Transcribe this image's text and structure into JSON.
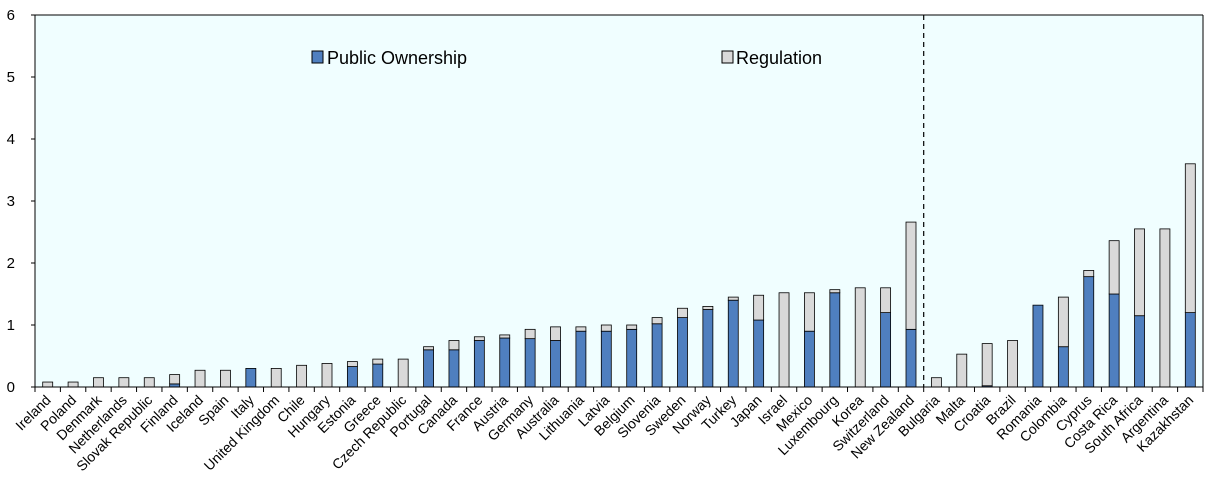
{
  "chart_data": {
    "type": "bar",
    "stacked": true,
    "ylim": [
      0,
      6
    ],
    "yticks": [
      0,
      1,
      2,
      3,
      4,
      5,
      6
    ],
    "grid": false,
    "legend_placement": "top",
    "divider_after": "New Zealand",
    "categories": [
      "Ireland",
      "Poland",
      "Denmark",
      "Netherlands",
      "Slovak Republic",
      "Finland",
      "Iceland",
      "Spain",
      "Italy",
      "United Kingdom",
      "Chile",
      "Hungary",
      "Estonia",
      "Greece",
      "Czech Republic",
      "Portugal",
      "Canada",
      "France",
      "Austria",
      "Germany",
      "Australia",
      "Lithuania",
      "Latvia",
      "Belgium",
      "Slovenia",
      "Sweden",
      "Norway",
      "Turkey",
      "Japan",
      "Israel",
      "Mexico",
      "Luxembourg",
      "Korea",
      "Switzerland",
      "New Zealand",
      "Bulgaria",
      "Malta",
      "Croatia",
      "Brazil",
      "Romania",
      "Colombia",
      "Cyprus",
      "Costa Rica",
      "South Africa",
      "Argentina",
      "Kazakhstan"
    ],
    "series": [
      {
        "name": "Public Ownership",
        "color": "#4f7fbf",
        "values": [
          0,
          0,
          0,
          0,
          0,
          0.05,
          0,
          0,
          0.3,
          0,
          0,
          0,
          0.33,
          0.37,
          0,
          0.6,
          0.6,
          0.75,
          0.79,
          0.78,
          0.75,
          0.9,
          0.9,
          0.93,
          1.02,
          1.12,
          1.25,
          1.4,
          1.08,
          0,
          0.9,
          1.52,
          0,
          1.2,
          0.93,
          0,
          0,
          0.02,
          0,
          1.32,
          0.65,
          1.78,
          1.5,
          1.15,
          0,
          1.2
        ]
      },
      {
        "name": "Regulation",
        "color": "#d9d9d9",
        "values": [
          0.08,
          0.08,
          0.15,
          0.15,
          0.15,
          0.15,
          0.27,
          0.27,
          0,
          0.3,
          0.35,
          0.38,
          0.08,
          0.08,
          0.45,
          0.05,
          0.15,
          0.06,
          0.05,
          0.15,
          0.22,
          0.07,
          0.1,
          0.07,
          0.1,
          0.15,
          0.05,
          0.05,
          0.4,
          1.52,
          0.62,
          0.05,
          1.6,
          0.4,
          1.73,
          0.15,
          0.53,
          0.68,
          0.75,
          0,
          0.8,
          0.1,
          0.86,
          1.4,
          2.55,
          2.4
        ]
      }
    ]
  }
}
